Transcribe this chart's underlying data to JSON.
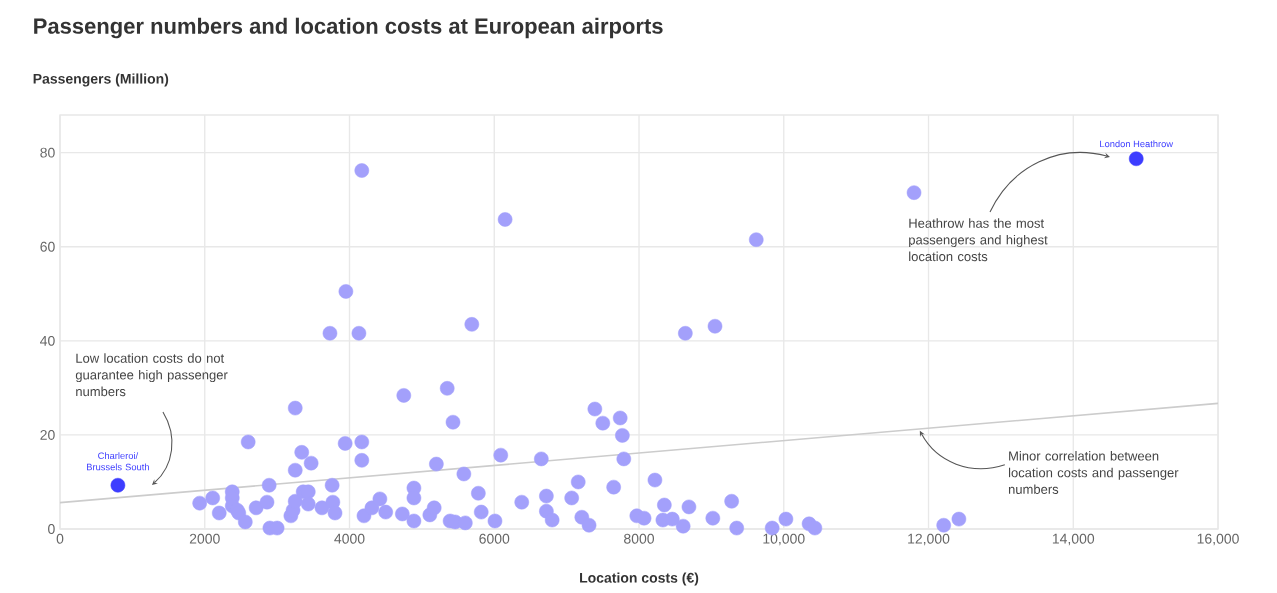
{
  "chart_data": {
    "type": "scatter",
    "title": "Passenger numbers and location costs at European airports",
    "ylabel": "Passengers (Million)",
    "xlabel": "Location costs (€)",
    "xlim": [
      0,
      16000
    ],
    "ylim": [
      0,
      88
    ],
    "xticks": [
      0,
      2000,
      4000,
      6000,
      8000,
      {
        "value": 10000,
        "label": "10,000"
      },
      {
        "value": 12000,
        "label": "12,000"
      },
      {
        "value": 14000,
        "label": "14,000"
      },
      {
        "value": 16000,
        "label": "16,000"
      }
    ],
    "yticks": [
      0,
      20,
      40,
      60,
      80
    ],
    "grid": true,
    "series": [
      {
        "color": "#a3a0fb",
        "x": [
          4170,
          6150,
          11800,
          9620,
          3950,
          3730,
          4130,
          5690,
          8640,
          9050,
          3250,
          4750,
          5350,
          5430,
          7390,
          7500,
          7740,
          7770,
          2600,
          3940,
          4170,
          4170,
          3340,
          3470,
          3250,
          5200,
          6090,
          6650,
          7790,
          5580,
          7160,
          8220,
          2890,
          3760,
          1930,
          2110,
          2200,
          2380,
          2380,
          2380,
          2450,
          2470,
          2560,
          2710,
          2860,
          2900,
          3000,
          3190,
          3220,
          3250,
          3360,
          3430,
          3430,
          3620,
          3770,
          3800,
          4200,
          4310,
          4420,
          4500,
          4730,
          4890,
          4890,
          4890,
          5110,
          5170,
          5390,
          5460,
          5600,
          5780,
          5820,
          6010,
          6380,
          6720,
          6720,
          6800,
          7070,
          7210,
          7310,
          7650,
          7970,
          8070,
          8350,
          8330,
          8460,
          8690,
          8610,
          9020,
          9280,
          9350,
          9840,
          10030,
          10350,
          10430,
          12210,
          12420
        ],
        "values": [
          76.2,
          65.8,
          71.5,
          61.5,
          50.5,
          41.6,
          41.6,
          43.5,
          41.6,
          43.1,
          25.7,
          28.4,
          29.9,
          22.7,
          25.5,
          22.5,
          23.6,
          19.9,
          18.5,
          18.2,
          18.5,
          14.6,
          16.3,
          14.0,
          12.5,
          13.8,
          15.7,
          14.9,
          14.9,
          11.7,
          10.0,
          10.4,
          9.3,
          9.3,
          5.5,
          6.6,
          3.4,
          7.9,
          6.6,
          4.9,
          4.0,
          3.4,
          1.5,
          4.5,
          5.7,
          0.2,
          0.2,
          2.8,
          4.0,
          5.9,
          7.9,
          7.9,
          5.3,
          4.5,
          5.7,
          3.4,
          2.8,
          4.5,
          6.4,
          3.6,
          3.2,
          8.7,
          6.6,
          1.7,
          3.0,
          4.5,
          1.7,
          1.5,
          1.3,
          7.6,
          3.6,
          1.7,
          5.7,
          7.0,
          3.8,
          1.9,
          6.6,
          2.5,
          0.8,
          8.9,
          2.8,
          2.3,
          5.1,
          1.9,
          2.1,
          4.7,
          0.6,
          2.3,
          5.9,
          0.2,
          0.2,
          2.1,
          1.1,
          0.2,
          0.8,
          2.1
        ]
      },
      {
        "color": "#3d3dff",
        "x": [
          800,
          14870
        ],
        "values": [
          9.3,
          78.7
        ]
      },
      {
        "type": "line",
        "color": "#cccccc",
        "line_style": "solid",
        "x": [
          0,
          16000
        ],
        "values": [
          5.6,
          26.7
        ]
      }
    ],
    "annotations": [
      {
        "text": "London Heathrow",
        "x": 14870,
        "y": 78.7
      },
      {
        "text": "Charleroi/ Brussels South",
        "x": 800,
        "y": 9.3
      },
      "Heathrow has the most passengers and highest location costs",
      {
        "text": "Minor correlation between location costs and passenger numbers",
        "x": 11880,
        "y": 21.3
      },
      "Low location costs do not guarantee high passenger numbers"
    ]
  }
}
